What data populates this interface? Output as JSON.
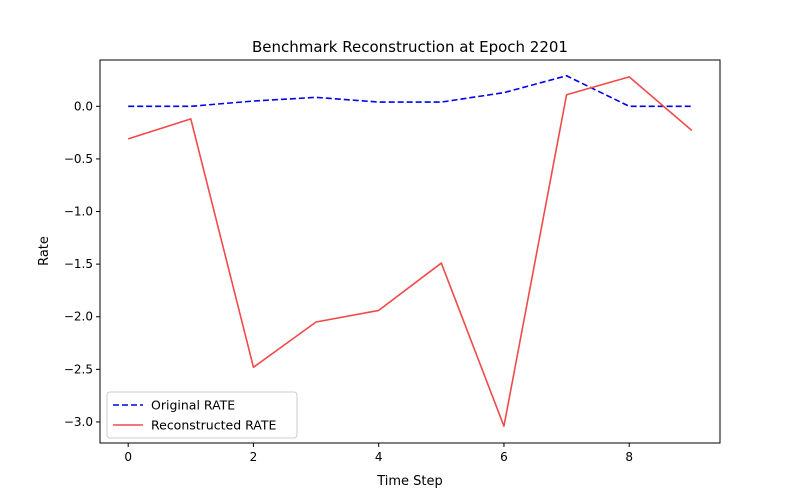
{
  "chart_data": {
    "type": "line",
    "title": "Benchmark Reconstruction at Epoch 2201",
    "xlabel": "Time Step",
    "ylabel": "Rate",
    "x": [
      0,
      1,
      2,
      3,
      4,
      5,
      6,
      7,
      8,
      9
    ],
    "xlim": [
      -0.45,
      9.45
    ],
    "ylim": [
      -3.2,
      0.44
    ],
    "xticks": [
      0,
      2,
      4,
      6,
      8
    ],
    "xtick_labels": [
      "0",
      "2",
      "4",
      "6",
      "8"
    ],
    "yticks": [
      0.0,
      -0.5,
      -1.0,
      -1.5,
      -2.0,
      -2.5,
      -3.0
    ],
    "ytick_labels": [
      "0.0",
      "−0.5",
      "−1.0",
      "−1.5",
      "−2.0",
      "−2.5",
      "−3.0"
    ],
    "grid": false,
    "legend_position": "lower-left",
    "series": [
      {
        "name": "Original RATE",
        "color": "#0000ee",
        "style": "dashed",
        "values": [
          0.0,
          0.0,
          0.05,
          0.085,
          0.04,
          0.04,
          0.13,
          0.29,
          0.0,
          0.0
        ]
      },
      {
        "name": "Reconstructed RATE",
        "color": "#f04a4a",
        "style": "solid",
        "values": [
          -0.31,
          -0.12,
          -2.48,
          -2.05,
          -1.94,
          -1.49,
          -3.04,
          0.11,
          0.28,
          -0.23
        ]
      }
    ]
  }
}
